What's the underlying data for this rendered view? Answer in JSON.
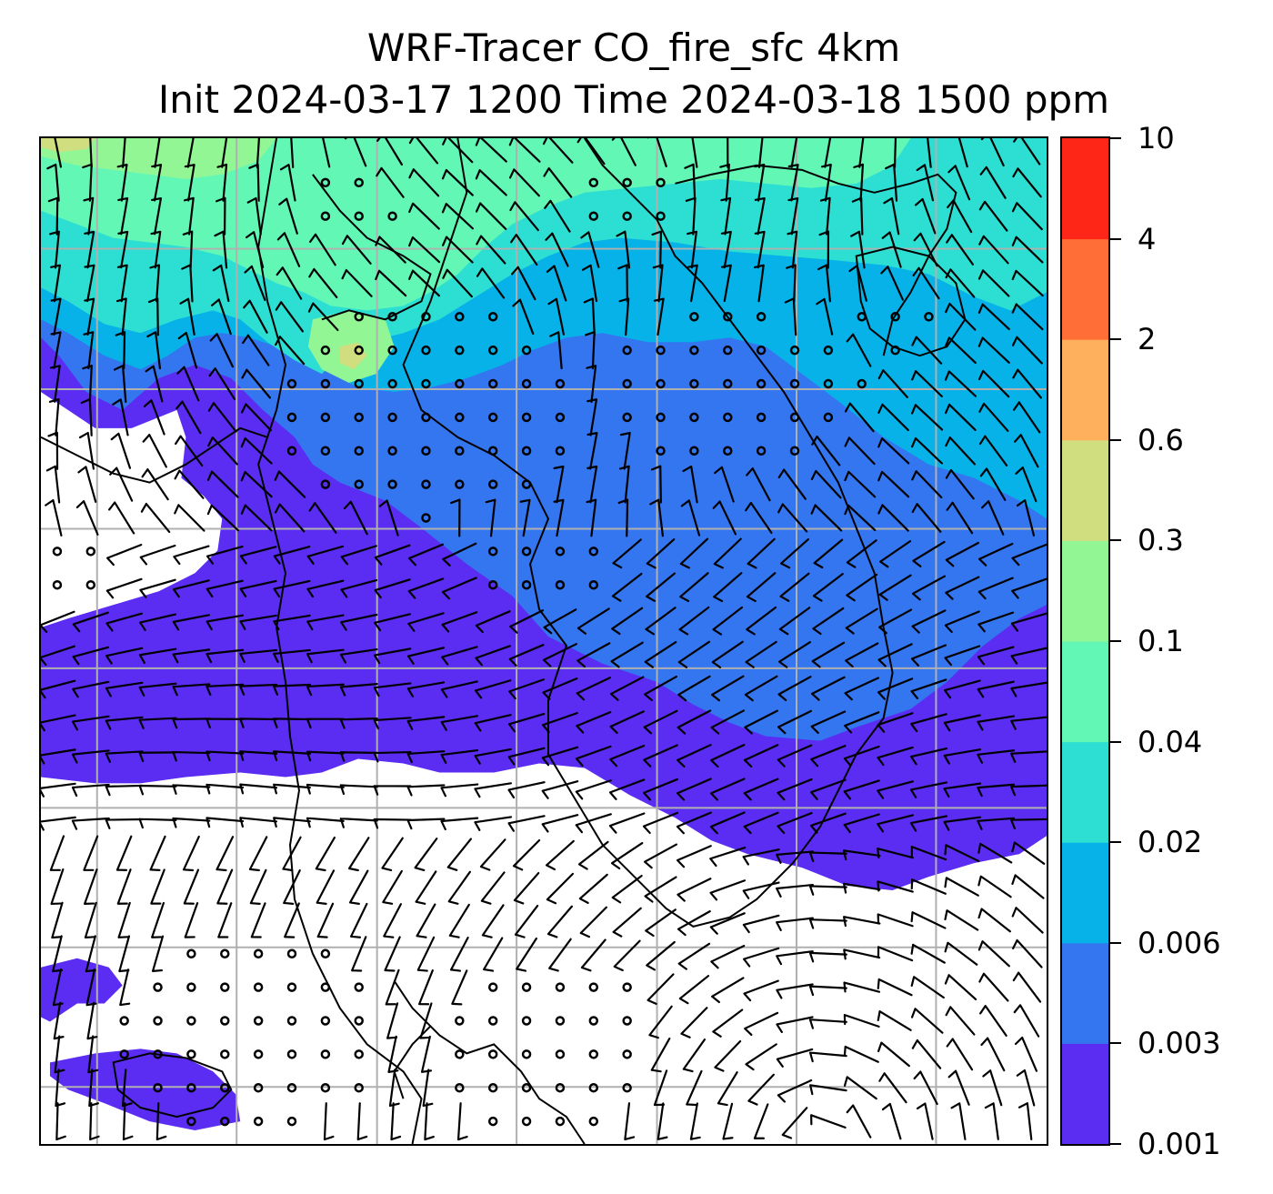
{
  "title": {
    "line1": "WRF-Tracer CO_fire_sfc 4km",
    "line2": "Init 2024-03-17 1200 Time 2024-03-18 1500 ppm"
  },
  "colorbar": {
    "levels": [
      "0.001",
      "0.003",
      "0.006",
      "0.02",
      "0.04",
      "0.1",
      "0.3",
      "0.6",
      "2",
      "4",
      "10"
    ],
    "colors": [
      "#5b2cf2",
      "#3475f0",
      "#06b2e8",
      "#2ddfd2",
      "#62f7b5",
      "#92f695",
      "#d0de80",
      "#ffb05c",
      "#ff6e36",
      "#fe2616"
    ]
  },
  "map": {
    "fill_levels": {
      "background": "#ffffff",
      "band_1": "#5b2cf2",
      "band_2": "#3475f0",
      "band_3": "#06b2e8",
      "band_4": "#2ddfd2",
      "band_5": "#62f7b5",
      "band_6": "#92f695",
      "band_7": "#d0de80"
    },
    "gridline_color": "#b0b0b0",
    "coastline_color": "#000000",
    "wind_barb_color": "#000000"
  }
}
